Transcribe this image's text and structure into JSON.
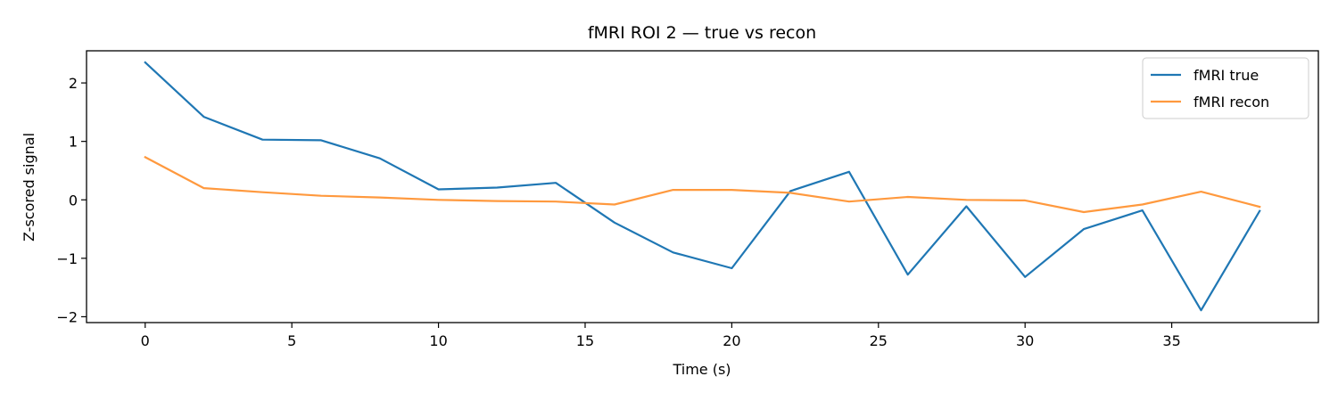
{
  "chart_data": {
    "type": "line",
    "title": "fMRI ROI 2 — true vs recon",
    "xlabel": "Time (s)",
    "ylabel": "Z-scored signal",
    "xlim": [
      -2,
      40
    ],
    "ylim": [
      -2.1,
      2.55
    ],
    "xticks": [
      0,
      5,
      10,
      15,
      20,
      25,
      30,
      35
    ],
    "yticks": [
      -2,
      -1,
      0,
      1,
      2
    ],
    "grid": false,
    "legend_position": "top-right",
    "x": [
      0,
      2,
      4,
      6,
      8,
      10,
      12,
      14,
      16,
      18,
      20,
      22,
      24,
      26,
      28,
      30,
      32,
      34,
      36,
      38
    ],
    "series": [
      {
        "name": "fMRI true",
        "color": "#1f77b4",
        "values": [
          2.35,
          1.42,
          1.03,
          1.02,
          0.71,
          0.18,
          0.21,
          0.29,
          -0.39,
          -0.9,
          -1.17,
          0.15,
          0.48,
          -1.28,
          -0.11,
          -1.32,
          -0.5,
          -0.18,
          -1.89,
          -0.19
        ]
      },
      {
        "name": "fMRI recon",
        "color": "#ff993e",
        "values": [
          0.73,
          0.2,
          0.13,
          0.07,
          0.04,
          0.0,
          -0.02,
          -0.03,
          -0.08,
          0.17,
          0.17,
          0.12,
          -0.03,
          0.05,
          0.0,
          -0.01,
          -0.21,
          -0.08,
          0.14,
          -0.12
        ]
      }
    ]
  }
}
